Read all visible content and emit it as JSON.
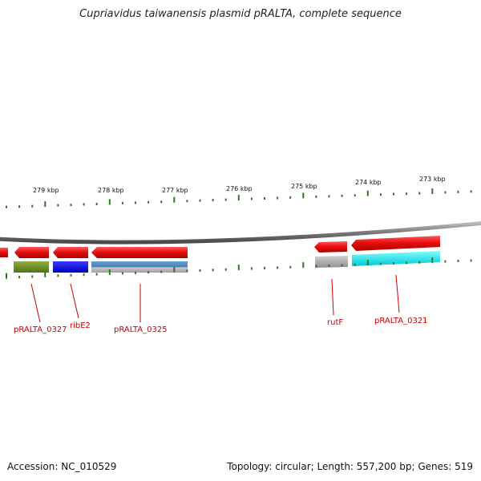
{
  "title": "Cupriavidus taiwanensis plasmid pRALTA, complete sequence",
  "footer": {
    "accession": "Accession: NC_010529",
    "summary": "Topology: circular; Length: 557,200 bp; Genes: 519"
  },
  "scale_ticks": [
    "279 kbp",
    "278 kbp",
    "277 kbp",
    "276 kbp",
    "275 kbp",
    "274 kbp",
    "273 kbp"
  ],
  "gene_labels": [
    "pRALTA_0327",
    "ribE2",
    "pRALTA_0325",
    "rutF",
    "pRALTA_0321"
  ],
  "colors": {
    "gene_red": "#e01010",
    "backbone": "#8a8a8a",
    "tick_green": "#2f7a1a",
    "label_red": "#cc0000",
    "cog_olive": "#6b8c1e",
    "cog_blue": "#0000e0",
    "cog_steelblue": "#4a7fb5",
    "cog_gray": "#a8a8a8",
    "cog_cyan": "#00e0e8"
  }
}
